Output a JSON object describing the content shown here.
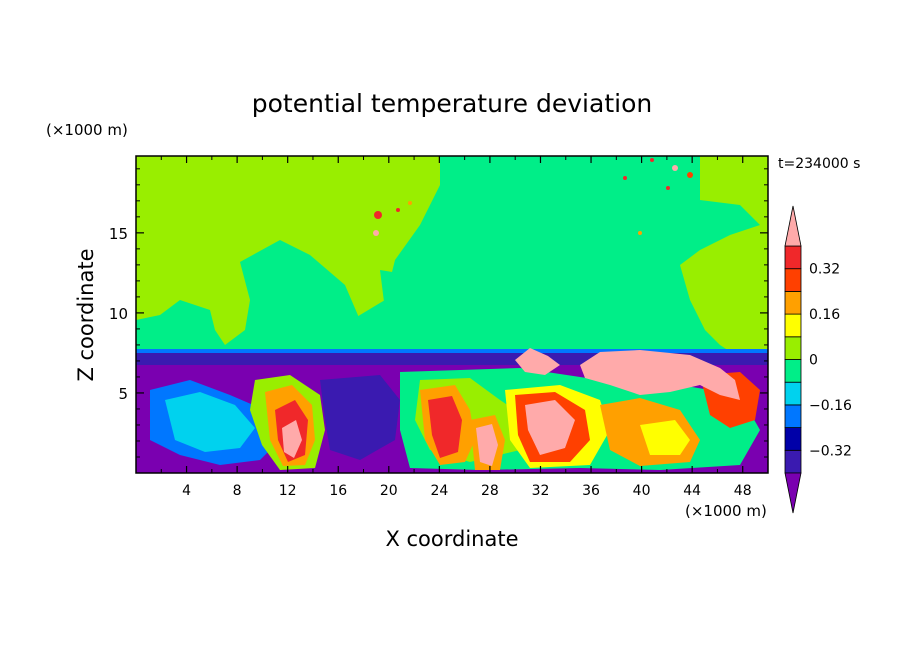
{
  "chart_data": {
    "type": "heatmap",
    "title": "potential temperature deviation",
    "xlabel": "X coordinate",
    "ylabel": "Z coordinate",
    "x_unit": "(×1000 m)",
    "y_unit": "(×1000 m)",
    "time_label": "t=234000 s",
    "xlim": [
      0,
      50
    ],
    "ylim": [
      0,
      19.8
    ],
    "x_ticks": [
      4,
      8,
      12,
      16,
      20,
      24,
      28,
      32,
      36,
      40,
      44,
      48
    ],
    "y_ticks": [
      5,
      10,
      15
    ],
    "colorbar": {
      "levels": [
        -0.4,
        -0.32,
        -0.24,
        -0.16,
        -0.08,
        0,
        0.08,
        0.16,
        0.24,
        0.32,
        0.4
      ],
      "labels": [
        "0.32",
        "0.16",
        "0",
        "−0.16",
        "−0.32"
      ],
      "label_values": [
        0.32,
        0.16,
        0,
        -0.16,
        -0.32
      ],
      "colors": [
        "#7a00b0",
        "#3a1ab0",
        "#0000a8",
        "#0077ff",
        "#00d2ee",
        "#00ee88",
        "#99ee00",
        "#ffff00",
        "#ffa000",
        "#ff4000",
        "#f0282a",
        "#ffaaaa"
      ]
    },
    "fields": {
      "upper_background": 0,
      "upper_band": 0.04,
      "inversion_layer": -0.38,
      "lower_cold_pool": -0.36,
      "warm_plumes_max": 0.45
    }
  }
}
